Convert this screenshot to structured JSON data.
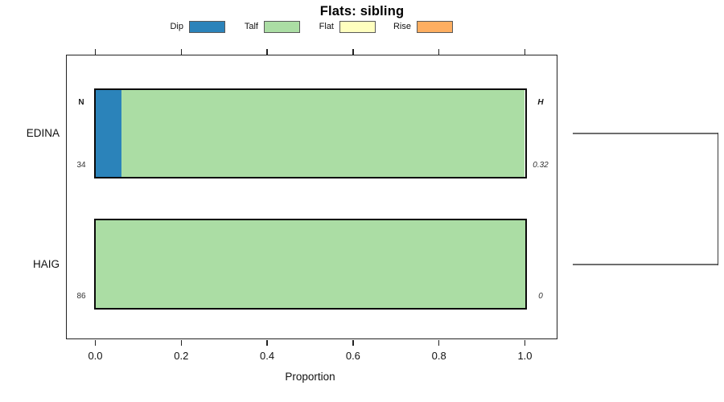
{
  "title": "Flats: sibling",
  "chart_data": {
    "type": "bar",
    "orientation": "horizontal",
    "stacked": true,
    "title": "Flats: sibling",
    "xlabel": "Proportion",
    "xlim": [
      0,
      1
    ],
    "x_ticks": [
      0.0,
      0.2,
      0.4,
      0.6,
      0.8,
      1.0
    ],
    "x_tick_labels": [
      "0.0",
      "0.2",
      "0.4",
      "0.6",
      "0.8",
      "1.0"
    ],
    "grid": false,
    "legend_position": "top",
    "categories": [
      "EDINA",
      "HAIG"
    ],
    "series": [
      {
        "name": "Dip",
        "color": "#2B83BA",
        "values": [
          0.06,
          0
        ]
      },
      {
        "name": "Talf",
        "color": "#ABDDA4",
        "values": [
          0.94,
          1.0
        ]
      },
      {
        "name": "Flat",
        "color": "#FFFFBF",
        "values": [
          0,
          0
        ]
      },
      {
        "name": "Rise",
        "color": "#FDAE61",
        "values": [
          0,
          0
        ]
      }
    ],
    "annotations": {
      "left_column_header": "N",
      "right_column_header": "H",
      "left_column_values": [
        "34",
        "86"
      ],
      "right_column_values": [
        "0.32",
        "0"
      ]
    },
    "dendrogram": {
      "present": true,
      "joins": [
        "EDINA",
        "HAIG"
      ],
      "description": "bracket on right side linking the two category rows"
    },
    "colors": {
      "bar_border": "#000000",
      "legend_swatch_border": "#595959",
      "dendrogram_line": "#6e6e6e"
    }
  }
}
